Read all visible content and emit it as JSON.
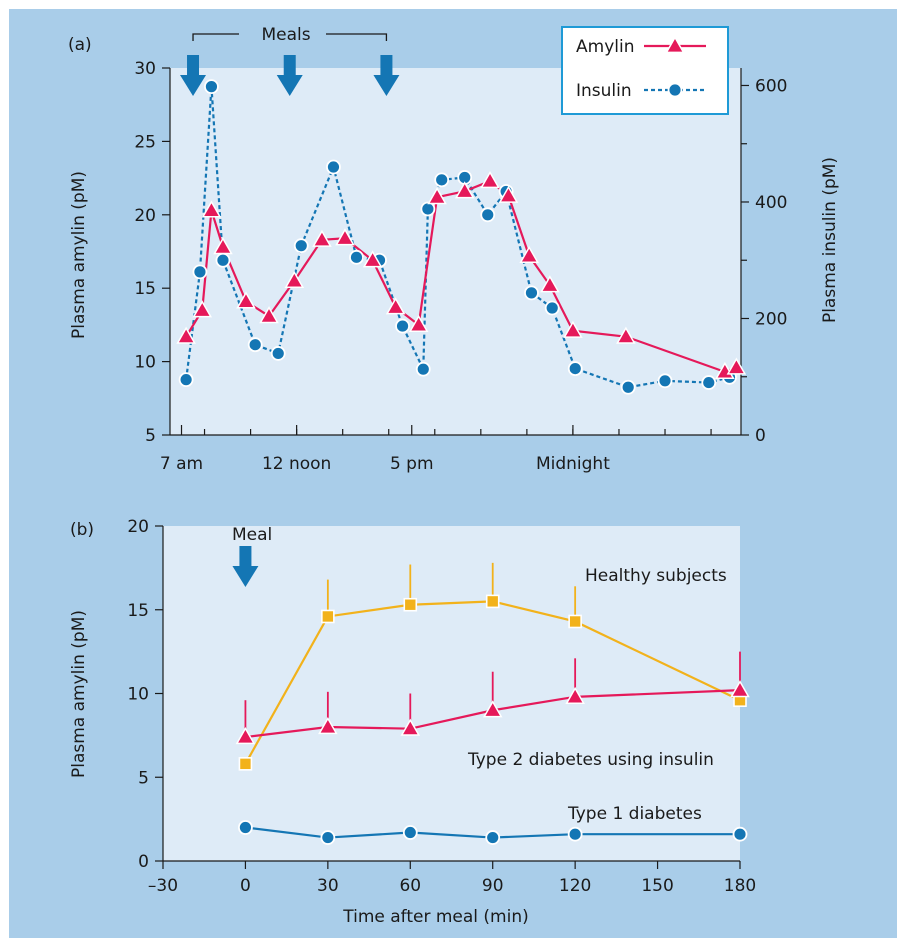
{
  "colors": {
    "background": "#ffffff",
    "panel": "#a9cde9",
    "plot": "#deebf7",
    "amylin": "#e5195a",
    "insulin": "#1476b4",
    "healthy": "#f2b21b",
    "arrow": "#1476b4",
    "legend_border": "#1e9ad6"
  },
  "chart_data": [
    {
      "type": "line",
      "panel_label": "(a)",
      "xlabel": "",
      "ylabel": "Plasma amylin (pM)",
      "y2label": "Plasma insulin (pM)",
      "ylim": [
        5,
        30
      ],
      "yticks": [
        5,
        10,
        15,
        20,
        25,
        30
      ],
      "y2lim": [
        0,
        630
      ],
      "y2ticks": [
        0,
        200,
        400,
        600
      ],
      "y2minor": [
        100,
        300,
        500
      ],
      "xlim": [
        6.5,
        31.3
      ],
      "xticks": [
        {
          "x": 7,
          "label": "7 am"
        },
        {
          "x": 12,
          "label": "12 noon"
        },
        {
          "x": 17,
          "label": "5 pm"
        },
        {
          "x": 24,
          "label": "Midnight"
        }
      ],
      "xminor": [
        8,
        10,
        12,
        14,
        16,
        18,
        20,
        22,
        24,
        26,
        28,
        30
      ],
      "meals_label": "Meals",
      "meal_times": [
        7.5,
        11.7,
        15.9
      ],
      "legend": {
        "position": "top-right",
        "amylin": "Amylin",
        "insulin": "Insulin"
      },
      "series": [
        {
          "name": "Amylin",
          "axis": "left",
          "marker": "triangle",
          "x": [
            7.2,
            7.9,
            8.3,
            8.8,
            9.8,
            10.8,
            11.9,
            13.1,
            14.1,
            15.3,
            16.3,
            17.3,
            18.1,
            19.3,
            20.4,
            21.2,
            22.1,
            23.0,
            24.0,
            26.3,
            30.6,
            31.1
          ],
          "y": [
            11.7,
            13.5,
            20.3,
            17.8,
            14.1,
            13.1,
            15.5,
            18.3,
            18.4,
            16.9,
            13.7,
            12.5,
            21.2,
            21.6,
            22.3,
            21.3,
            17.2,
            15.2,
            12.1,
            11.7,
            9.3,
            9.6
          ]
        },
        {
          "name": "Insulin",
          "axis": "right",
          "marker": "circle",
          "x": [
            7.2,
            7.8,
            8.3,
            8.8,
            10.2,
            11.2,
            12.2,
            13.6,
            14.6,
            15.6,
            16.6,
            17.5,
            17.7,
            18.3,
            19.3,
            20.3,
            21.1,
            22.2,
            23.1,
            24.1,
            26.4,
            28.0,
            29.9,
            30.8
          ],
          "y": [
            95,
            280,
            598,
            300,
            155,
            140,
            325,
            460,
            305,
            300,
            187,
            113,
            388,
            438,
            442,
            378,
            418,
            244,
            218,
            114,
            82,
            93,
            90,
            99
          ]
        }
      ]
    },
    {
      "type": "line",
      "panel_label": "(b)",
      "xlabel": "Time after meal (min)",
      "ylabel": "Plasma amylin (pM)",
      "xlim": [
        -30,
        180
      ],
      "xticks": [
        -30,
        0,
        30,
        60,
        90,
        120,
        150,
        180
      ],
      "x_tick_labels": [
        "–30",
        "0",
        "30",
        "60",
        "90",
        "120",
        "150",
        "180"
      ],
      "ylim": [
        0,
        20
      ],
      "yticks": [
        0,
        5,
        10,
        15,
        20
      ],
      "meal_label": "Meal",
      "meal_time": 0,
      "series": [
        {
          "name": "Healthy subjects",
          "marker": "square",
          "x": [
            0,
            30,
            60,
            90,
            120,
            180
          ],
          "y": [
            5.8,
            14.6,
            15.3,
            15.5,
            14.3,
            9.6
          ],
          "error_upper": [
            null,
            2.2,
            2.4,
            2.3,
            2.1,
            null
          ]
        },
        {
          "name": "Type 2 diabetes using insulin",
          "marker": "triangle",
          "x": [
            0,
            30,
            60,
            90,
            120,
            180
          ],
          "y": [
            7.4,
            8.0,
            7.9,
            9.0,
            9.8,
            10.2
          ],
          "error_upper": [
            2.2,
            2.1,
            2.1,
            2.3,
            2.3,
            2.3
          ]
        },
        {
          "name": "Type 1 diabetes",
          "marker": "circle",
          "x": [
            0,
            30,
            60,
            90,
            120,
            180
          ],
          "y": [
            2.0,
            1.4,
            1.7,
            1.4,
            1.6,
            1.6
          ],
          "error_upper": [
            0.4,
            null,
            0.3,
            null,
            0.3,
            null
          ]
        }
      ]
    }
  ]
}
